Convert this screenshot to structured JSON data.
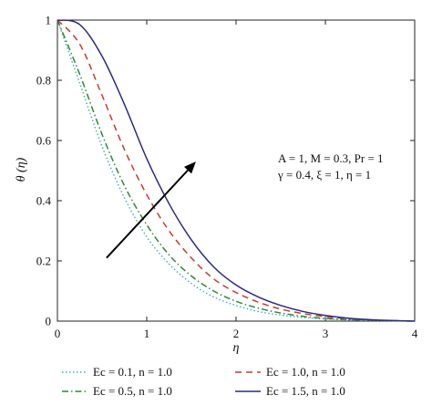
{
  "chart_data": {
    "type": "line",
    "xlabel": "η",
    "ylabel": "θ (η)",
    "xlim": [
      0,
      4
    ],
    "ylim": [
      0,
      1
    ],
    "xticks": [
      "0",
      "1",
      "2",
      "3",
      "4"
    ],
    "yticks": [
      "0",
      "0.2",
      "0.4",
      "0.6",
      "0.8",
      "1"
    ],
    "grid": false,
    "legend_position": "bottom",
    "annotation": {
      "line1": "A = 1, M = 0.3, Pr = 1",
      "line2": "γ = 0.4, ξ = 1, η = 1"
    },
    "arrow": {
      "from": [
        0.55,
        0.21
      ],
      "to": [
        1.55,
        0.53
      ]
    },
    "x": [
      0,
      0.25,
      0.5,
      0.75,
      1.0,
      1.25,
      1.5,
      1.75,
      2.0,
      2.25,
      2.5,
      2.75,
      3.0,
      3.25,
      3.5,
      3.75,
      4.0
    ],
    "series": [
      {
        "name": "Ec = 0.1, n = 1.0",
        "color": "#3aaec0",
        "dash": "dotted",
        "values": [
          1.0,
          0.79,
          0.58,
          0.41,
          0.28,
          0.19,
          0.125,
          0.08,
          0.052,
          0.032,
          0.02,
          0.012,
          0.007,
          0.004,
          0.002,
          0.001,
          0.0
        ]
      },
      {
        "name": "Ec = 0.5, n = 1.0",
        "color": "#2e8b2e",
        "dash": "dashdot",
        "values": [
          1.0,
          0.82,
          0.62,
          0.45,
          0.32,
          0.22,
          0.15,
          0.1,
          0.066,
          0.043,
          0.027,
          0.016,
          0.009,
          0.005,
          0.003,
          0.001,
          0.0
        ]
      },
      {
        "name": "Ec = 1.0, n = 1.0",
        "color": "#cc3a2a",
        "dash": "dashed",
        "values": [
          1.0,
          0.92,
          0.75,
          0.57,
          0.42,
          0.3,
          0.21,
          0.14,
          0.095,
          0.063,
          0.04,
          0.025,
          0.015,
          0.008,
          0.004,
          0.002,
          0.0
        ]
      },
      {
        "name": "Ec = 1.5, n = 1.0",
        "color": "#2a2a8a",
        "dash": "solid",
        "values": [
          1.0,
          0.985,
          0.88,
          0.72,
          0.54,
          0.39,
          0.27,
          0.18,
          0.12,
          0.08,
          0.052,
          0.032,
          0.019,
          0.01,
          0.005,
          0.002,
          0.0
        ]
      }
    ]
  }
}
